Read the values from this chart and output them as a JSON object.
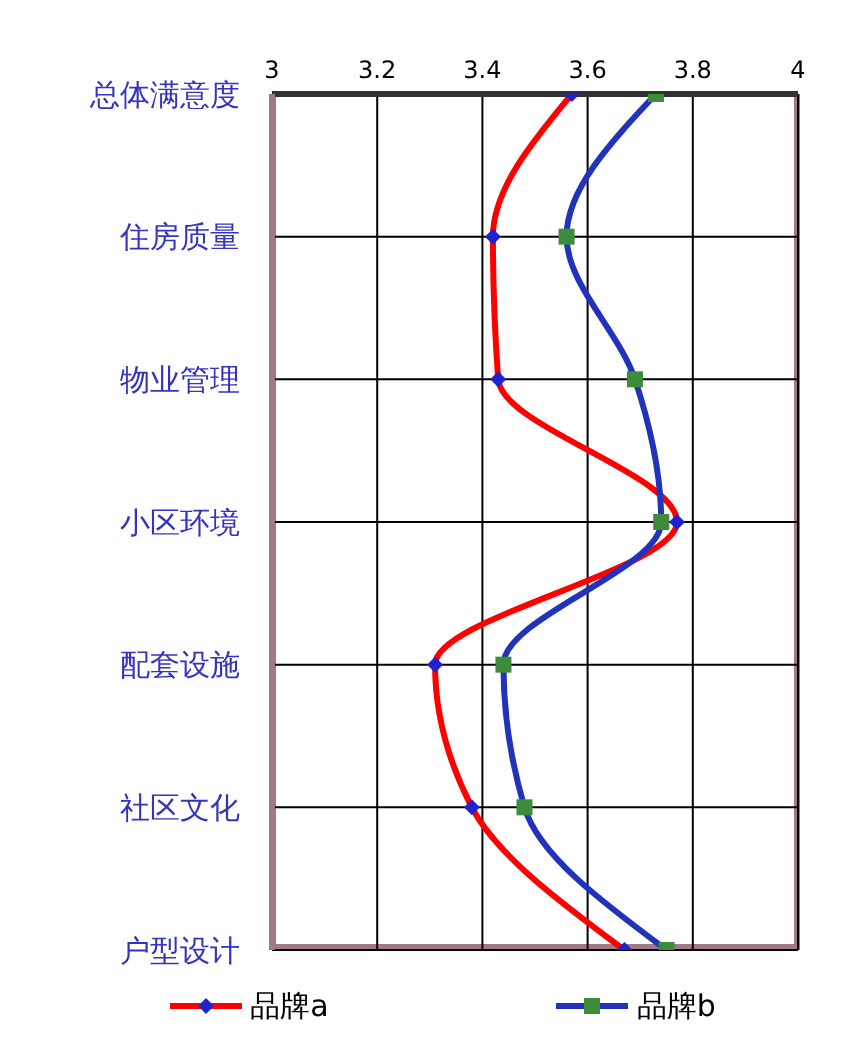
{
  "chart_data": {
    "type": "line",
    "orientation": "horizontal",
    "categories": [
      "总体满意度",
      "住房质量",
      "物业管理",
      "小区环境",
      "配套设施",
      "社区文化",
      "户型设计"
    ],
    "series": [
      {
        "name": "品牌a",
        "color": "#ff0000",
        "marker": "diamond",
        "colors": [
          "#2222cc",
          "#2222cc",
          "#2222cc",
          "#2222cc",
          "#2222cc",
          "#2222cc",
          "#2222cc"
        ],
        "values": [
          3.57,
          3.42,
          3.43,
          3.77,
          3.31,
          3.38,
          3.67
        ]
      },
      {
        "name": "品牌b",
        "color": "#2233bb",
        "marker": "square",
        "colors": [
          "#3c8c3c",
          "#3c8c3c",
          "#3c8c3c",
          "#3c8c3c",
          "#3c8c3c",
          "#3c8c3c",
          "#3c8c3c"
        ],
        "values": [
          3.73,
          3.56,
          3.69,
          3.74,
          3.44,
          3.48,
          3.75
        ]
      }
    ],
    "xlim": [
      3,
      4
    ],
    "xticks": [
      3,
      3.2,
      3.4,
      3.6,
      3.8,
      4
    ],
    "grid": true,
    "legend": "bottom",
    "line_style": "solid"
  }
}
